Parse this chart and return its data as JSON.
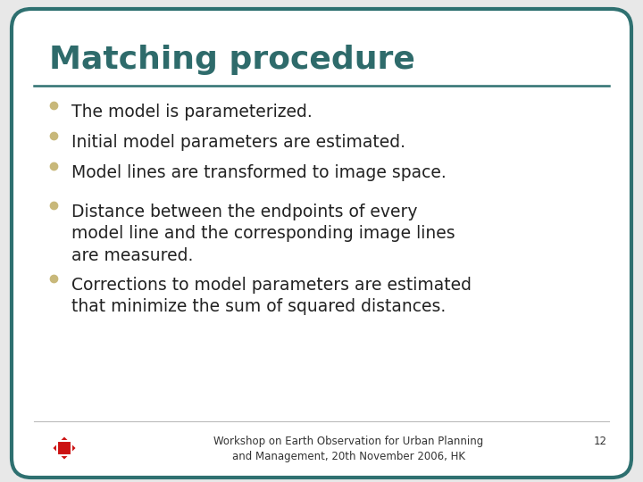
{
  "title": "Matching procedure",
  "title_color": "#2E6B6B",
  "title_fontsize": 26,
  "bullet_color": "#C8B87A",
  "text_color": "#222222",
  "bg_color": "#E8E8E8",
  "border_color": "#2E7070",
  "line_color": "#2E7070",
  "bullet_points": [
    "The model is parameterized.",
    "Initial model parameters are estimated.",
    "Model lines are transformed to image space.",
    "Distance between the endpoints of every\nmodel line and the corresponding image lines\nare measured.",
    "Corrections to model parameters are estimated\nthat minimize the sum of squared distances."
  ],
  "footer_text": "Workshop on Earth Observation for Urban Planning\nand Management, 20th November 2006, HK",
  "footer_page": "12",
  "footer_fontsize": 8.5,
  "text_fontsize": 13.5,
  "font_family": "DejaVu Sans"
}
